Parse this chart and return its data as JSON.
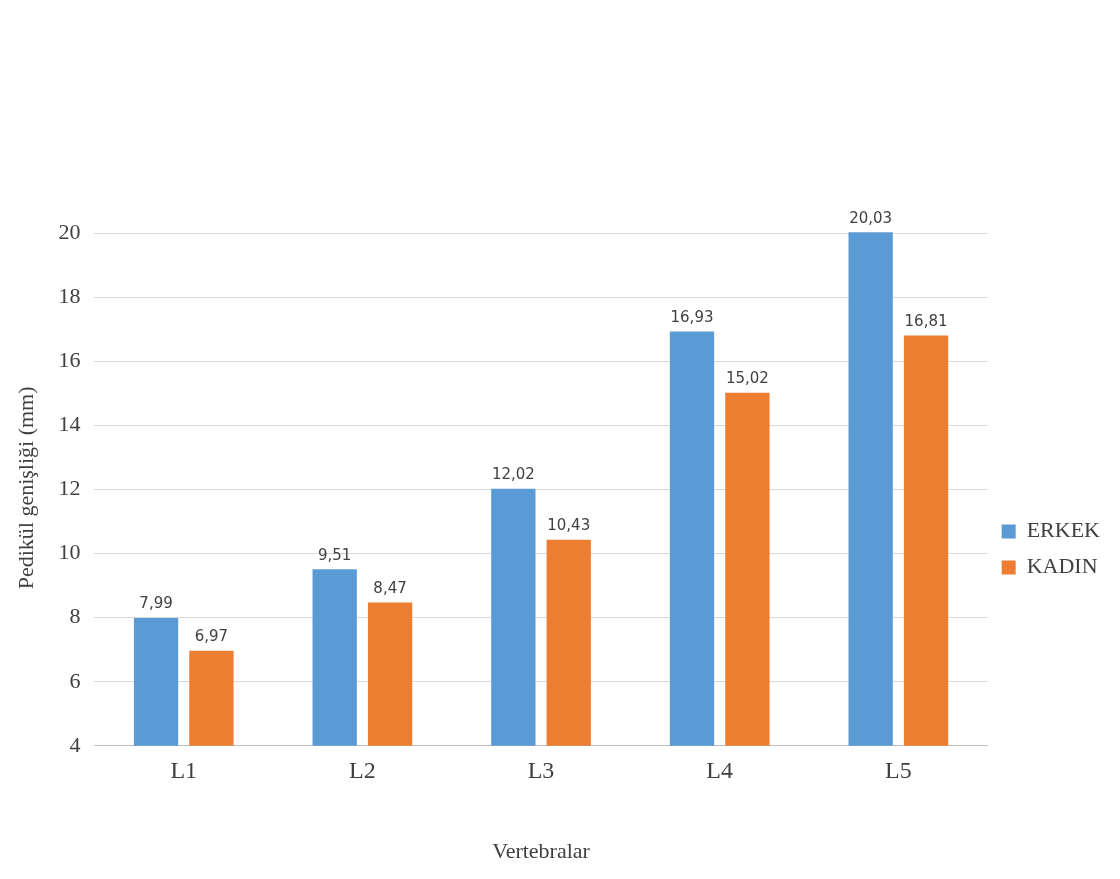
{
  "chart_data": {
    "type": "bar",
    "xlabel": "Vertebralar",
    "ylabel": "Pedikül genişliği (mm)",
    "categories": [
      "L1",
      "L2",
      "L3",
      "L4",
      "L5"
    ],
    "series": [
      {
        "name": "ERKEK",
        "color": "#5b9bd5",
        "values": [
          7.99,
          9.51,
          12.02,
          16.93,
          20.03
        ],
        "value_labels": [
          "7,99",
          "9,51",
          "12,02",
          "16,93",
          "20,03"
        ]
      },
      {
        "name": "KADIN",
        "color": "#ed7d31",
        "values": [
          6.97,
          8.47,
          10.43,
          15.02,
          16.81
        ],
        "value_labels": [
          "6,97",
          "8,47",
          "10,43",
          "15,02",
          "16,81"
        ]
      }
    ],
    "ylim": [
      4,
      20.1
    ],
    "yticks": [
      4,
      6,
      8,
      10,
      12,
      14,
      16,
      18,
      20
    ],
    "grid": "y",
    "legend": "right"
  }
}
